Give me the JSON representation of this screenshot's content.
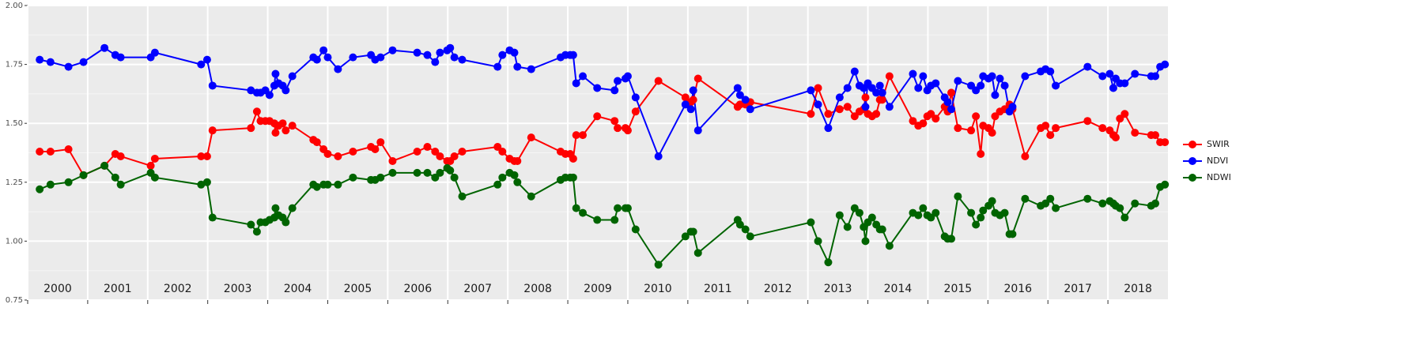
{
  "chart_data": {
    "type": "line",
    "x": [
      2000.2,
      2000.38,
      2000.68,
      2000.93,
      2001.28,
      2001.46,
      2001.55,
      2002.05,
      2002.12,
      2002.89,
      2002.99,
      2003.08,
      2003.72,
      2003.82,
      2003.88,
      2003.96,
      2004.03,
      2004.11,
      2004.13,
      2004.18,
      2004.25,
      2004.3,
      2004.41,
      2004.76,
      2004.82,
      2004.93,
      2005.0,
      2005.17,
      2005.42,
      2005.72,
      2005.79,
      2005.88,
      2006.08,
      2006.49,
      2006.66,
      2006.79,
      2006.87,
      2006.99,
      2007.04,
      2007.11,
      2007.24,
      2007.83,
      2007.91,
      2008.03,
      2008.11,
      2008.16,
      2008.39,
      2008.88,
      2008.96,
      2009.04,
      2009.09,
      2009.14,
      2009.25,
      2009.49,
      2009.78,
      2009.83,
      2009.96,
      2010.0,
      2010.13,
      2010.51,
      2010.96,
      2011.05,
      2011.09,
      2011.17,
      2011.83,
      2011.87,
      2011.96,
      2012.04,
      2013.05,
      2013.17,
      2013.34,
      2013.53,
      2013.66,
      2013.78,
      2013.86,
      2013.93,
      2013.96,
      2014.0,
      2014.07,
      2014.14,
      2014.2,
      2014.24,
      2014.36,
      2014.75,
      2014.84,
      2014.92,
      2014.99,
      2015.05,
      2015.13,
      2015.28,
      2015.33,
      2015.39,
      2015.5,
      2015.72,
      2015.8,
      2015.88,
      2015.92,
      2016.01,
      2016.07,
      2016.12,
      2016.2,
      2016.28,
      2016.36,
      2016.41,
      2016.62,
      2016.88,
      2016.96,
      2017.04,
      2017.13,
      2017.66,
      2017.91,
      2018.03,
      2018.09,
      2018.13,
      2018.2,
      2018.28,
      2018.45,
      2018.72,
      2018.79,
      2018.87,
      2018.95
    ],
    "series": [
      {
        "name": "SWIR",
        "color": "#ff0000",
        "values": [
          1.38,
          1.38,
          1.39,
          1.28,
          1.32,
          1.37,
          1.36,
          1.32,
          1.35,
          1.36,
          1.36,
          1.47,
          1.48,
          1.55,
          1.51,
          1.51,
          1.51,
          1.5,
          1.46,
          1.49,
          1.5,
          1.47,
          1.49,
          1.43,
          1.42,
          1.39,
          1.37,
          1.36,
          1.38,
          1.4,
          1.39,
          1.42,
          1.34,
          1.38,
          1.4,
          1.38,
          1.36,
          1.34,
          1.34,
          1.36,
          1.38,
          1.4,
          1.38,
          1.35,
          1.34,
          1.34,
          1.44,
          1.38,
          1.37,
          1.37,
          1.35,
          1.45,
          1.45,
          1.53,
          1.51,
          1.48,
          1.48,
          1.47,
          1.55,
          1.68,
          1.61,
          1.59,
          1.6,
          1.69,
          1.57,
          1.58,
          1.58,
          1.59,
          1.54,
          1.65,
          1.54,
          1.56,
          1.57,
          1.53,
          1.55,
          1.56,
          1.61,
          1.54,
          1.53,
          1.54,
          1.6,
          1.6,
          1.7,
          1.51,
          1.49,
          1.5,
          1.53,
          1.54,
          1.52,
          1.57,
          1.55,
          1.63,
          1.48,
          1.47,
          1.53,
          1.37,
          1.49,
          1.48,
          1.46,
          1.53,
          1.55,
          1.56,
          1.58,
          1.56,
          1.36,
          1.48,
          1.49,
          1.45,
          1.48,
          1.51,
          1.48,
          1.47,
          1.45,
          1.44,
          1.52,
          1.54,
          1.46,
          1.45,
          1.45,
          1.42,
          1.42
        ]
      },
      {
        "name": "NDVI",
        "color": "#0000ff",
        "values": [
          1.77,
          1.76,
          1.74,
          1.76,
          1.82,
          1.79,
          1.78,
          1.78,
          1.8,
          1.75,
          1.77,
          1.66,
          1.64,
          1.63,
          1.63,
          1.64,
          1.62,
          1.66,
          1.71,
          1.67,
          1.66,
          1.64,
          1.7,
          1.78,
          1.77,
          1.81,
          1.78,
          1.73,
          1.78,
          1.79,
          1.77,
          1.78,
          1.81,
          1.8,
          1.79,
          1.76,
          1.8,
          1.81,
          1.82,
          1.78,
          1.77,
          1.74,
          1.79,
          1.81,
          1.8,
          1.74,
          1.73,
          1.78,
          1.79,
          1.79,
          1.79,
          1.67,
          1.7,
          1.65,
          1.64,
          1.68,
          1.69,
          1.7,
          1.61,
          1.36,
          1.58,
          1.56,
          1.64,
          1.47,
          1.65,
          1.62,
          1.6,
          1.56,
          1.64,
          1.58,
          1.48,
          1.61,
          1.65,
          1.72,
          1.66,
          1.65,
          1.57,
          1.67,
          1.65,
          1.63,
          1.66,
          1.63,
          1.57,
          1.71,
          1.65,
          1.7,
          1.64,
          1.66,
          1.67,
          1.61,
          1.59,
          1.56,
          1.68,
          1.66,
          1.64,
          1.66,
          1.7,
          1.69,
          1.7,
          1.62,
          1.69,
          1.66,
          1.55,
          1.57,
          1.7,
          1.72,
          1.73,
          1.72,
          1.66,
          1.74,
          1.7,
          1.71,
          1.65,
          1.69,
          1.67,
          1.67,
          1.71,
          1.7,
          1.7,
          1.74,
          1.75
        ]
      },
      {
        "name": "NDWI",
        "color": "#006400",
        "values": [
          1.22,
          1.24,
          1.25,
          1.28,
          1.32,
          1.27,
          1.24,
          1.29,
          1.27,
          1.24,
          1.25,
          1.1,
          1.07,
          1.04,
          1.08,
          1.08,
          1.09,
          1.1,
          1.14,
          1.11,
          1.1,
          1.08,
          1.14,
          1.24,
          1.23,
          1.24,
          1.24,
          1.24,
          1.27,
          1.26,
          1.26,
          1.27,
          1.29,
          1.29,
          1.29,
          1.27,
          1.29,
          1.31,
          1.3,
          1.27,
          1.19,
          1.24,
          1.27,
          1.29,
          1.28,
          1.25,
          1.19,
          1.26,
          1.27,
          1.27,
          1.27,
          1.14,
          1.12,
          1.09,
          1.09,
          1.14,
          1.14,
          1.14,
          1.05,
          0.9,
          1.02,
          1.04,
          1.04,
          0.95,
          1.09,
          1.07,
          1.05,
          1.02,
          1.08,
          1.0,
          0.91,
          1.11,
          1.06,
          1.14,
          1.12,
          1.06,
          1.0,
          1.08,
          1.1,
          1.07,
          1.05,
          1.05,
          0.98,
          1.12,
          1.11,
          1.14,
          1.11,
          1.1,
          1.12,
          1.02,
          1.01,
          1.01,
          1.19,
          1.12,
          1.07,
          1.1,
          1.13,
          1.15,
          1.17,
          1.12,
          1.11,
          1.12,
          1.03,
          1.03,
          1.18,
          1.15,
          1.16,
          1.18,
          1.14,
          1.18,
          1.16,
          1.17,
          1.16,
          1.15,
          1.14,
          1.1,
          1.16,
          1.15,
          1.16,
          1.23,
          1.24
        ]
      }
    ],
    "xlim": [
      2000,
      2019
    ],
    "xticks": [
      2000,
      2001,
      2002,
      2003,
      2004,
      2005,
      2006,
      2007,
      2008,
      2009,
      2010,
      2011,
      2012,
      2013,
      2014,
      2015,
      2016,
      2017,
      2018
    ],
    "ylim": [
      0.75,
      2.0
    ],
    "yticks": [
      0.75,
      {
        "value": 1,
        "label": "1.00"
      },
      1.25,
      {
        "value": 1.5,
        "label": "1.50"
      },
      1.75,
      {
        "value": 2,
        "label": "2.00"
      }
    ],
    "grid": true,
    "legend": "right"
  }
}
